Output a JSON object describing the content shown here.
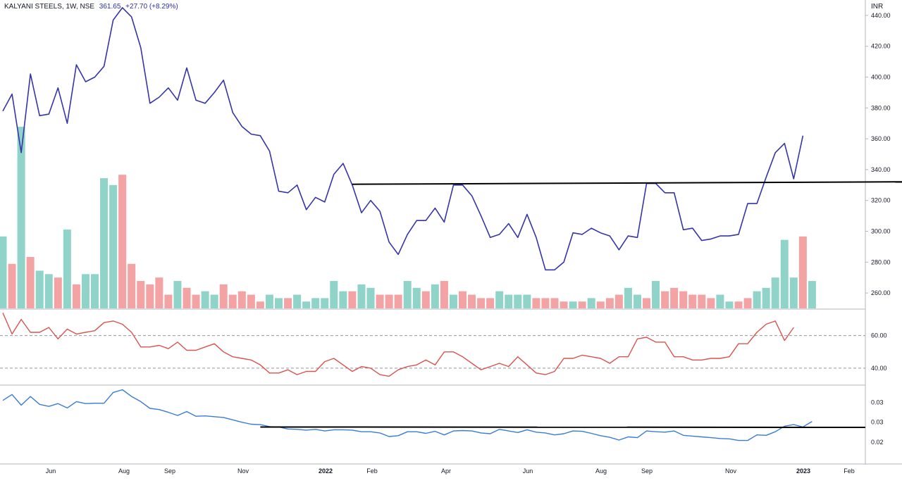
{
  "header": {
    "symbol": "KALYANI STEELS, 1W, NSE",
    "last": "361.65",
    "change": "+27.70 (+8.29%)",
    "currency": "INR"
  },
  "colors": {
    "price_line": "#3535a8",
    "volume_up": "#8fd3c9",
    "volume_down": "#f3a3a3",
    "rsi_line": "#d9534f",
    "ratio_line": "#3a7bd5",
    "trendline": "#000000",
    "grid": "#e0e3eb"
  },
  "chart_data": [
    {
      "type": "line",
      "title": "KALYANI STEELS, 1W, NSE",
      "ylabel": "INR",
      "ylim": [
        250,
        450
      ],
      "yticks": [
        260,
        280,
        300,
        320,
        340,
        360,
        380,
        400,
        420,
        440
      ],
      "ytick_labels": [
        "260.00",
        "280.00",
        "300.00",
        "320.00",
        "340.00",
        "360.00",
        "380.00",
        "400.00",
        "420.00",
        "440.00"
      ],
      "x_tick_labels": [
        "Jun",
        "Aug",
        "Sep",
        "Nov",
        "2022",
        "Feb",
        "Apr",
        "Jun",
        "Aug",
        "Sep",
        "Nov",
        "2023",
        "Feb"
      ],
      "series": [
        {
          "values": [
            378,
            389,
            351,
            402,
            375,
            376,
            393,
            370,
            408,
            397,
            400,
            407,
            437,
            445,
            439,
            419,
            383,
            387,
            393,
            385,
            406,
            385,
            383,
            390,
            398,
            377,
            368,
            363,
            362,
            352,
            326,
            325,
            330,
            314,
            322,
            319,
            337,
            344,
            330,
            312,
            320,
            313,
            293,
            285,
            298,
            307,
            307,
            315,
            306,
            330,
            330,
            323,
            310,
            296,
            298,
            305,
            296,
            311,
            296,
            275,
            275,
            280,
            299,
            298,
            302,
            299,
            297,
            288,
            297,
            296,
            331,
            331,
            325,
            325,
            301,
            302,
            294,
            295,
            297,
            297,
            298,
            318,
            318,
            335,
            351,
            357,
            334,
            362
          ]
        }
      ],
      "trendline": {
        "from": [
          38,
          330.5
        ],
        "to": [
          113,
          332.5
        ]
      }
    },
    {
      "type": "bar",
      "title": "",
      "values": [
        271,
        263,
        303,
        265,
        261,
        260,
        259,
        273,
        257,
        260,
        260,
        288,
        286,
        289,
        263,
        258,
        257,
        259,
        254,
        258,
        256,
        254,
        255,
        254,
        257,
        254,
        255,
        254,
        252,
        254,
        253,
        253,
        254,
        252,
        253,
        253,
        258,
        255,
        255,
        257,
        256,
        254,
        254,
        254,
        258,
        256,
        255,
        257,
        258,
        254,
        255,
        254,
        253,
        253,
        255,
        254,
        254,
        254,
        253,
        253,
        253,
        252,
        252,
        252,
        253,
        252,
        253,
        254,
        256,
        254,
        253,
        258,
        255,
        256,
        255,
        254,
        254,
        253,
        254,
        252,
        252,
        253,
        255,
        256,
        259,
        270,
        259,
        271,
        258
      ],
      "directions": [
        "up",
        "down",
        "up",
        "down",
        "up",
        "up",
        "down",
        "up",
        "down",
        "up",
        "up",
        "up",
        "up",
        "down",
        "down",
        "down",
        "down",
        "down",
        "down",
        "up",
        "down",
        "down",
        "up",
        "up",
        "down",
        "down",
        "down",
        "down",
        "down",
        "up",
        "up",
        "down",
        "up",
        "up",
        "up",
        "up",
        "up",
        "up",
        "down",
        "up",
        "up",
        "down",
        "down",
        "down",
        "up",
        "up",
        "down",
        "up",
        "down",
        "up",
        "down",
        "down",
        "down",
        "down",
        "up",
        "up",
        "up",
        "up",
        "down",
        "down",
        "down",
        "down",
        "up",
        "down",
        "up",
        "down",
        "down",
        "down",
        "up",
        "up",
        "down",
        "up",
        "down",
        "down",
        "down",
        "down",
        "down",
        "down",
        "up",
        "up",
        "down",
        "down",
        "up",
        "up",
        "up",
        "up",
        "up",
        "down",
        "up"
      ]
    },
    {
      "type": "line",
      "title": "",
      "ylim": [
        30,
        75
      ],
      "yticks": [
        40,
        60
      ],
      "ytick_labels": [
        "40.00",
        "60.00"
      ],
      "reference_lines": [
        40,
        60
      ],
      "series": [
        {
          "values": [
            74,
            61,
            70,
            62,
            62,
            65,
            58,
            64,
            61,
            62,
            63,
            68,
            69,
            67,
            62,
            53,
            53,
            54,
            52,
            56,
            51,
            51,
            53,
            55,
            50,
            47,
            46,
            45,
            42,
            37,
            37,
            39,
            36,
            38,
            38,
            44,
            46,
            42,
            38,
            41,
            40,
            36,
            35,
            39,
            41,
            42,
            45,
            42,
            50,
            50,
            47,
            43,
            39,
            41,
            43,
            41,
            47,
            42,
            37,
            36,
            38,
            46,
            46,
            48,
            47,
            46,
            43,
            47,
            47,
            58,
            59,
            56,
            56,
            47,
            47,
            45,
            45,
            46,
            46,
            47,
            55,
            55,
            62,
            67,
            69,
            57,
            65
          ]
        }
      ]
    },
    {
      "type": "line",
      "title": "",
      "ylim": [
        0.015,
        0.034
      ],
      "yticks": [
        0.02,
        0.025,
        0.03
      ],
      "ytick_labels": [
        "0.02",
        "0.03",
        "0.03"
      ],
      "series": [
        {
          "values": [
            0.0305,
            0.032,
            0.0293,
            0.0315,
            0.0295,
            0.029,
            0.0297,
            0.0286,
            0.0302,
            0.0297,
            0.0298,
            0.0298,
            0.0325,
            0.0332,
            0.0315,
            0.0302,
            0.0285,
            0.0282,
            0.0275,
            0.0267,
            0.0277,
            0.0265,
            0.0266,
            0.0264,
            0.0262,
            0.0256,
            0.025,
            0.0245,
            0.0244,
            0.0239,
            0.0238,
            0.0233,
            0.0232,
            0.023,
            0.0232,
            0.0228,
            0.0231,
            0.0231,
            0.023,
            0.0226,
            0.0226,
            0.0223,
            0.0214,
            0.0216,
            0.0226,
            0.0226,
            0.0222,
            0.0227,
            0.0218,
            0.0228,
            0.0229,
            0.0228,
            0.0223,
            0.0221,
            0.0232,
            0.0228,
            0.0224,
            0.0231,
            0.0225,
            0.0223,
            0.0218,
            0.0221,
            0.0228,
            0.0227,
            0.0222,
            0.0216,
            0.0212,
            0.0205,
            0.0213,
            0.0211,
            0.0228,
            0.0226,
            0.0225,
            0.0228,
            0.0217,
            0.0215,
            0.0213,
            0.0211,
            0.0209,
            0.0208,
            0.0204,
            0.0204,
            0.0218,
            0.0217,
            0.0226,
            0.024,
            0.0244,
            0.0238,
            0.0252
          ]
        }
      ],
      "trendline": {
        "from": [
          28,
          0.0238
        ],
        "to": [
          113,
          0.0237
        ]
      }
    }
  ]
}
